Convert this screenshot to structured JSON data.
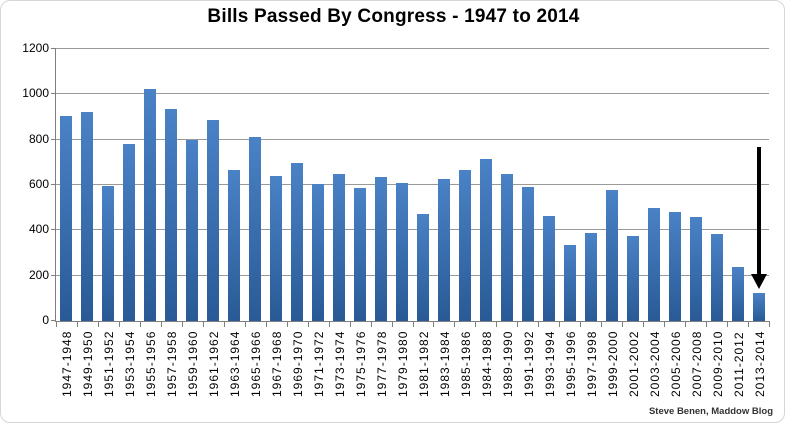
{
  "title": "Bills Passed By Congress - 1947 to 2014",
  "credit": "Steve Benen, Maddow Blog",
  "chart_data": {
    "type": "bar",
    "title": "Bills Passed By Congress - 1947 to 2014",
    "xlabel": "",
    "ylabel": "",
    "ylim": [
      0,
      1200
    ],
    "yticks": [
      0,
      200,
      400,
      600,
      800,
      1000,
      1200
    ],
    "grid": true,
    "legend": false,
    "categories": [
      "1947-1948",
      "1949-1950",
      "1951-1952",
      "1953-1954",
      "1955-1956",
      "1957-1958",
      "1959-1960",
      "1961-1962",
      "1963-1964",
      "1965-1966",
      "1967-1968",
      "1969-1970",
      "1971-1972",
      "1973-1974",
      "1975-1976",
      "1977-1978",
      "1979-1980",
      "1981-1982",
      "1983-1984",
      "1985-1986",
      "1984-1988",
      "1989-1990",
      "1991-1992",
      "1993-1994",
      "1995-1996",
      "1997-1998",
      "1999-2000",
      "2001-2002",
      "2003-2004",
      "2005-2006",
      "2007-2008",
      "2009-2010",
      "2011-2012",
      "2013-2014"
    ],
    "values": [
      905,
      920,
      595,
      780,
      1025,
      935,
      800,
      885,
      665,
      810,
      640,
      695,
      605,
      650,
      585,
      635,
      610,
      470,
      625,
      665,
      715,
      650,
      590,
      465,
      335,
      390,
      580,
      375,
      500,
      480,
      460,
      385,
      240,
      125
    ],
    "colors": {
      "bar_gradient_top": "#4a82c6",
      "bar_gradient_bottom": "#295a96",
      "gridline": "#999999",
      "axis": "#7f7f7f",
      "annotation_arrow": "#000000"
    },
    "annotation": {
      "type": "down-arrow",
      "target_category": "2013-2014"
    }
  }
}
